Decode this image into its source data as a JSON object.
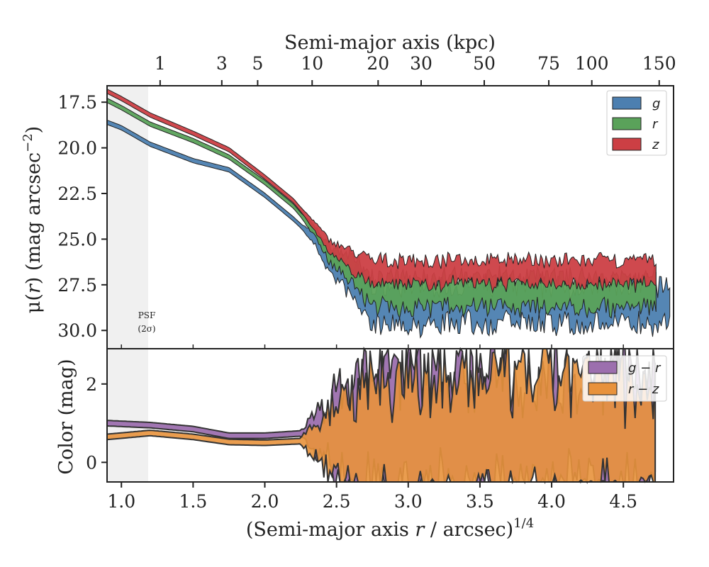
{
  "chart_data": [
    {
      "panel": "surface-brightness",
      "type": "area",
      "title": "",
      "xlabel": "(Semi-major axis r / arcsec)^1/4",
      "xlabel_parts": {
        "pre": "(Semi-major axis ",
        "var": "r",
        "mid": " / arcsec)",
        "sup": "1/4"
      },
      "ylabel": "μ(r) (mag arcsec^-2)",
      "ylabel_parts": {
        "mu": "μ(",
        "var": "r",
        "post": ") (mag arcsec",
        "sup": "−2",
        "end": ")"
      },
      "top_xlabel": "Semi-major axis (kpc)",
      "xlim": [
        0.9,
        4.85
      ],
      "ylim": [
        31.0,
        16.6
      ],
      "y_inverted": true,
      "yticks": [
        17.5,
        20.0,
        22.5,
        25.0,
        27.5,
        30.0
      ],
      "ytick_labels": [
        "17.5",
        "20.0",
        "22.5",
        "25.0",
        "27.5",
        "30.0"
      ],
      "top_ticks_kpc": [
        1,
        3,
        5,
        10,
        20,
        30,
        50,
        75,
        100,
        150
      ],
      "top_tick_labels": [
        "1",
        "3",
        "5",
        "10",
        "20",
        "30",
        "50",
        "75",
        "100",
        "150"
      ],
      "top_tick_x": [
        1.27,
        1.7,
        1.95,
        2.33,
        2.79,
        3.09,
        3.53,
        3.98,
        4.28,
        4.75
      ],
      "psf_label_line1": "PSF",
      "psf_label_line2": "(2σ)",
      "psf_region": [
        0.9,
        1.19
      ],
      "legend_position": "upper-right",
      "series": [
        {
          "name": "g",
          "color": "#4c7fb0",
          "anchors_x": [
            0.9,
            1.0,
            1.2,
            1.5,
            1.75,
            2.0,
            2.2,
            2.35,
            2.45,
            2.55,
            2.65,
            2.75
          ],
          "anchors_y": [
            18.6,
            18.9,
            19.8,
            20.7,
            21.2,
            22.6,
            23.9,
            25.0,
            26.3,
            26.9,
            27.7,
            28.6
          ],
          "floor": 28.6,
          "noise": 1.4
        },
        {
          "name": "r",
          "color": "#5aa25a",
          "anchors_x": [
            0.9,
            1.0,
            1.2,
            1.5,
            1.75,
            2.0,
            2.2,
            2.35,
            2.45,
            2.55,
            2.65,
            2.75
          ],
          "anchors_y": [
            17.4,
            17.8,
            18.7,
            19.6,
            20.5,
            21.9,
            23.2,
            24.6,
            25.8,
            26.3,
            27.0,
            27.8
          ],
          "floor": 27.9,
          "noise": 1.1
        },
        {
          "name": "z",
          "color": "#cc3f44",
          "anchors_x": [
            0.9,
            1.0,
            1.2,
            1.5,
            1.75,
            2.0,
            2.2,
            2.35,
            2.45,
            2.55,
            2.65,
            2.75
          ],
          "anchors_y": [
            16.9,
            17.3,
            18.2,
            19.2,
            20.1,
            21.6,
            22.9,
            24.3,
            25.4,
            25.9,
            26.4,
            26.8
          ],
          "floor": 26.8,
          "noise": 0.8
        }
      ]
    },
    {
      "panel": "color",
      "type": "area",
      "title": "",
      "xlabel": "(Semi-major axis r / arcsec)^1/4",
      "ylabel": "Color (mag)",
      "xlim": [
        0.9,
        4.85
      ],
      "ylim": [
        -0.5,
        2.9
      ],
      "yticks": [
        0,
        2
      ],
      "ytick_labels": [
        "0",
        "2"
      ],
      "xticks": [
        1.0,
        1.5,
        2.0,
        2.5,
        3.0,
        3.5,
        4.0,
        4.5
      ],
      "xtick_labels": [
        "1.0",
        "1.5",
        "2.0",
        "2.5",
        "3.0",
        "3.5",
        "4.0",
        "4.5"
      ],
      "legend_position": "upper-right",
      "series": [
        {
          "name": "g − r",
          "color": "#9c6fae",
          "anchors_x": [
            0.9,
            1.2,
            1.5,
            1.75,
            2.0,
            2.3
          ],
          "anchors_y": [
            1.0,
            0.95,
            0.85,
            0.68,
            0.68,
            0.75
          ]
        },
        {
          "name": "r − z",
          "color": "#e8923c",
          "anchors_x": [
            0.9,
            1.2,
            1.5,
            1.75,
            2.0,
            2.3
          ],
          "anchors_y": [
            0.65,
            0.75,
            0.65,
            0.52,
            0.5,
            0.55
          ]
        }
      ]
    }
  ]
}
